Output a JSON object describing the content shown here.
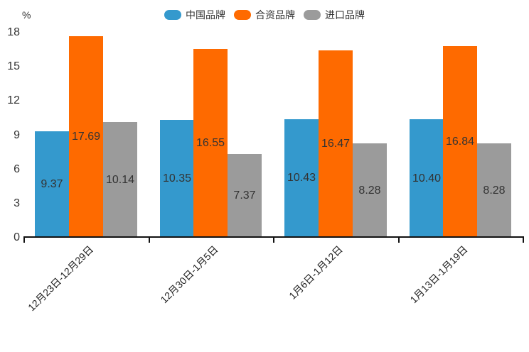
{
  "chart_data": {
    "type": "bar",
    "title": "",
    "xlabel": "",
    "ylabel": "%",
    "ylim": [
      0,
      18
    ],
    "yticks": [
      0,
      3,
      6,
      9,
      12,
      15,
      18
    ],
    "grid": false,
    "legend_position": "top-center",
    "categories": [
      "12月23日-12月29日",
      "12月30日-1月5日",
      "1月6日-1月12日",
      "1月13日-1月19日"
    ],
    "series": [
      {
        "name": "中国品牌",
        "color": "#3499cd",
        "values": [
          9.37,
          10.35,
          10.43,
          10.4
        ],
        "labels": [
          "9.37",
          "10.35",
          "10.43",
          "10.40"
        ]
      },
      {
        "name": "合资品牌",
        "color": "#fe6a00",
        "values": [
          17.69,
          16.55,
          16.47,
          16.84
        ],
        "labels": [
          "17.69",
          "16.55",
          "16.47",
          "16.84"
        ]
      },
      {
        "name": "进口品牌",
        "color": "#9b9b9b",
        "values": [
          10.14,
          7.37,
          8.28,
          8.28
        ],
        "labels": [
          "10.14",
          "7.37",
          "8.28",
          "8.28"
        ]
      }
    ],
    "value_label_color": "#333333",
    "axis_color": "#111111",
    "text_color": "#333333"
  }
}
